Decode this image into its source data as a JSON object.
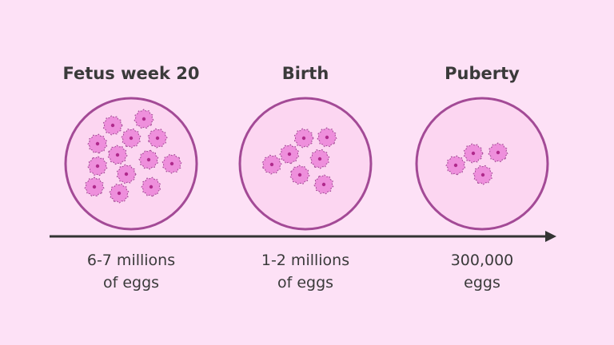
{
  "stages": [
    {
      "title": "Fetus week 20",
      "count_line1": "6-7 millions",
      "count_line2": "of eggs",
      "egg_count": 13
    },
    {
      "title": "Birth",
      "count_line1": "1-2 millions",
      "count_line2": "of eggs",
      "egg_count": 7
    },
    {
      "title": "Puberty",
      "count_line1": "300,000",
      "count_line2": "eggs",
      "egg_count": 4
    }
  ],
  "colors": {
    "background": "#fde1f6",
    "circle_fill": "#fcd6f1",
    "circle_stroke": "#a34a96",
    "egg_fill": "#ee8fdc",
    "egg_nucleus": "#b02a8c",
    "arrow": "#333333",
    "text": "#3a3a3a"
  }
}
